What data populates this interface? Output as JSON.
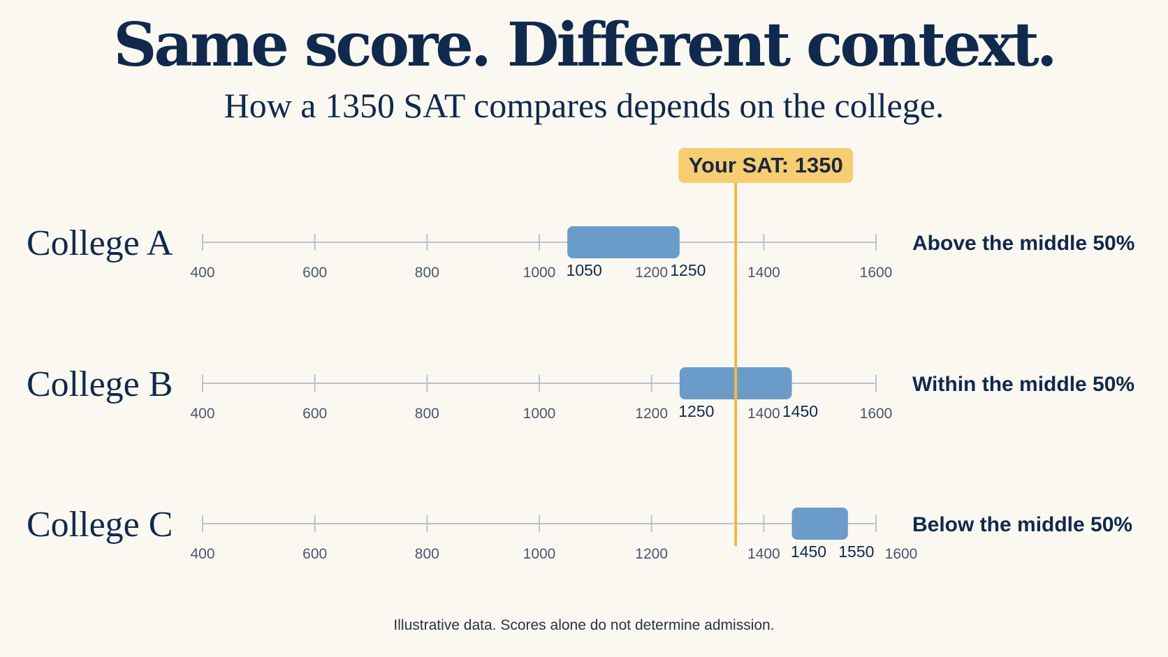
{
  "title": "Same score. Different context.",
  "subtitle": "How a 1350 SAT compares depends on the college.",
  "footer": "Illustrative data. Scores alone do not determine admission.",
  "colors": {
    "background": "#fbf8f1",
    "bar": "#6a9bc9",
    "axis": "#b9c3cf",
    "marker": "#f2b945",
    "marker_label_bg": "#f7cd72",
    "text": "#10294d"
  },
  "chart_data": {
    "type": "range",
    "xlim": [
      400,
      1600
    ],
    "ticks": [
      400,
      600,
      800,
      1000,
      1200,
      1400,
      1600
    ],
    "marker": {
      "label": "Your SAT: 1350",
      "value": 1350
    },
    "rows": [
      {
        "name": "College A",
        "low": 1050,
        "high": 1250,
        "low_label": "1050",
        "high_label": "1250",
        "status": "Above the middle 50%"
      },
      {
        "name": "College B",
        "low": 1250,
        "high": 1450,
        "low_label": "1250",
        "high_label": "1450",
        "status": "Within the middle 50%"
      },
      {
        "name": "College C",
        "low": 1450,
        "high": 1550,
        "low_label": "1450",
        "high_label": "1550",
        "status": "Below the middle 50%"
      }
    ]
  }
}
